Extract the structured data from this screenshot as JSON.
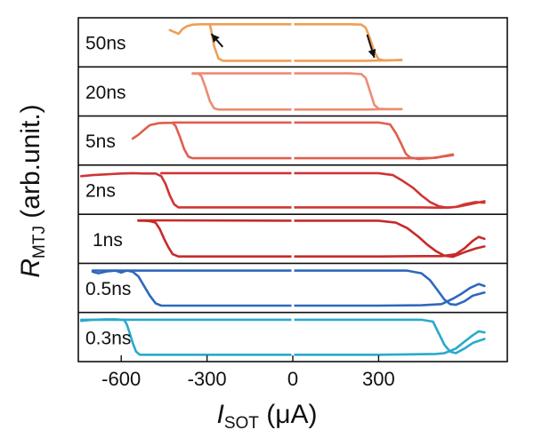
{
  "chart_data": {
    "type": "line",
    "xlabel": {
      "main": "I",
      "sub": "SOT",
      "unit": " (μA)"
    },
    "ylabel": {
      "main": "R",
      "sub": "MTJ",
      "unit": " (arb.unit.)"
    },
    "xlim": [
      -750,
      750
    ],
    "x_ticks": [
      -600,
      -300,
      0,
      300
    ],
    "x_tick_labels": [
      "-600",
      "-300",
      "0",
      "300"
    ],
    "panels": [
      {
        "label": "50ns",
        "color": "#ee9f55",
        "up_branch": [
          [
            -430,
            0.82
          ],
          [
            -400,
            0.72
          ],
          [
            -385,
            0.85
          ],
          [
            -370,
            0.92
          ],
          [
            -350,
            0.96
          ],
          [
            -320,
            0.97
          ],
          [
            -300,
            0.97
          ],
          [
            -290,
            0.97
          ],
          [
            -285,
            0.8
          ],
          [
            -275,
            0.4
          ],
          [
            -260,
            0.08
          ],
          [
            -245,
            0.02
          ],
          [
            0,
            0.02
          ],
          [
            250,
            0.02
          ],
          [
            330,
            0.03
          ],
          [
            380,
            0.04
          ]
        ],
        "down_branch": [
          [
            -300,
            0.97
          ],
          [
            0,
            0.97
          ],
          [
            200,
            0.97
          ],
          [
            240,
            0.96
          ],
          [
            255,
            0.88
          ],
          [
            270,
            0.6
          ],
          [
            285,
            0.25
          ],
          [
            300,
            0.06
          ],
          [
            320,
            0.03
          ],
          [
            380,
            0.04
          ]
        ],
        "arrows": [
          [
            -245,
            0.38,
            -285,
            0.72
          ],
          [
            260,
            0.7,
            285,
            0.1
          ]
        ]
      },
      {
        "label": "20ns",
        "color": "#ec8c73",
        "up_branch": [
          [
            -350,
            0.96
          ],
          [
            -330,
            0.96
          ],
          [
            -320,
            0.9
          ],
          [
            -305,
            0.6
          ],
          [
            -290,
            0.25
          ],
          [
            -275,
            0.06
          ],
          [
            -260,
            0.03
          ],
          [
            0,
            0.03
          ],
          [
            250,
            0.03
          ],
          [
            330,
            0.04
          ],
          [
            380,
            0.04
          ]
        ],
        "down_branch": [
          [
            -350,
            0.97
          ],
          [
            0,
            0.97
          ],
          [
            200,
            0.97
          ],
          [
            240,
            0.95
          ],
          [
            255,
            0.85
          ],
          [
            270,
            0.5
          ],
          [
            285,
            0.15
          ],
          [
            300,
            0.05
          ],
          [
            330,
            0.04
          ],
          [
            380,
            0.04
          ]
        ]
      },
      {
        "label": "5ns",
        "color": "#df5e50",
        "up_branch": [
          [
            -560,
            0.55
          ],
          [
            -540,
            0.65
          ],
          [
            -520,
            0.78
          ],
          [
            -500,
            0.9
          ],
          [
            -470,
            0.95
          ],
          [
            -450,
            0.96
          ],
          [
            -420,
            0.96
          ],
          [
            -410,
            0.88
          ],
          [
            -395,
            0.6
          ],
          [
            -380,
            0.28
          ],
          [
            -365,
            0.08
          ],
          [
            -350,
            0.04
          ],
          [
            0,
            0.04
          ],
          [
            300,
            0.04
          ],
          [
            430,
            0.04
          ],
          [
            500,
            0.05
          ],
          [
            530,
            0.1
          ],
          [
            560,
            0.14
          ]
        ],
        "down_branch": [
          [
            -420,
            0.97
          ],
          [
            0,
            0.97
          ],
          [
            300,
            0.97
          ],
          [
            340,
            0.92
          ],
          [
            360,
            0.7
          ],
          [
            380,
            0.4
          ],
          [
            395,
            0.16
          ],
          [
            410,
            0.06
          ],
          [
            440,
            0.02
          ],
          [
            490,
            0.05
          ],
          [
            560,
            0.12
          ]
        ]
      },
      {
        "label": "2ns",
        "color": "#cf3535",
        "up_branch": [
          [
            -740,
            0.85
          ],
          [
            -700,
            0.88
          ],
          [
            -650,
            0.9
          ],
          [
            -600,
            0.92
          ],
          [
            -560,
            0.93
          ],
          [
            -520,
            0.92
          ],
          [
            -480,
            0.92
          ],
          [
            -460,
            0.85
          ],
          [
            -445,
            0.65
          ],
          [
            -430,
            0.35
          ],
          [
            -415,
            0.12
          ],
          [
            -400,
            0.04
          ],
          [
            0,
            0.04
          ],
          [
            300,
            0.04
          ],
          [
            450,
            0.04
          ],
          [
            520,
            0.03
          ],
          [
            570,
            0.05
          ],
          [
            600,
            0.12
          ],
          [
            640,
            0.18
          ],
          [
            670,
            0.16
          ]
        ],
        "down_branch": [
          [
            -460,
            0.93
          ],
          [
            0,
            0.93
          ],
          [
            300,
            0.93
          ],
          [
            350,
            0.88
          ],
          [
            380,
            0.75
          ],
          [
            420,
            0.55
          ],
          [
            450,
            0.35
          ],
          [
            480,
            0.18
          ],
          [
            510,
            0.07
          ],
          [
            540,
            0.03
          ],
          [
            580,
            0.06
          ],
          [
            620,
            0.12
          ],
          [
            670,
            0.2
          ]
        ]
      },
      {
        "label": "1ns",
        "color": "#c82a2a",
        "up_branch": [
          [
            -540,
            0.97
          ],
          [
            -520,
            0.97
          ],
          [
            -500,
            0.96
          ],
          [
            -480,
            0.92
          ],
          [
            -465,
            0.75
          ],
          [
            -450,
            0.5
          ],
          [
            -435,
            0.28
          ],
          [
            -420,
            0.1
          ],
          [
            -400,
            0.04
          ],
          [
            0,
            0.04
          ],
          [
            300,
            0.04
          ],
          [
            450,
            0.05
          ],
          [
            520,
            0.05
          ],
          [
            570,
            0.1
          ],
          [
            600,
            0.25
          ],
          [
            630,
            0.45
          ],
          [
            650,
            0.55
          ],
          [
            670,
            0.5
          ]
        ],
        "down_branch": [
          [
            -540,
            0.98
          ],
          [
            0,
            0.97
          ],
          [
            300,
            0.97
          ],
          [
            360,
            0.92
          ],
          [
            400,
            0.78
          ],
          [
            440,
            0.55
          ],
          [
            470,
            0.35
          ],
          [
            500,
            0.18
          ],
          [
            530,
            0.06
          ],
          [
            560,
            0.03
          ],
          [
            600,
            0.15
          ],
          [
            640,
            0.25
          ],
          [
            670,
            0.3
          ]
        ]
      },
      {
        "label": "0.5ns",
        "color": "#2e68bd",
        "up_branch": [
          [
            -700,
            0.92
          ],
          [
            -680,
            0.88
          ],
          [
            -650,
            0.93
          ],
          [
            -620,
            0.95
          ],
          [
            -600,
            0.9
          ],
          [
            -590,
            0.93
          ],
          [
            -580,
            0.95
          ],
          [
            -560,
            0.92
          ],
          [
            -540,
            0.8
          ],
          [
            -520,
            0.55
          ],
          [
            -500,
            0.3
          ],
          [
            -480,
            0.1
          ],
          [
            -460,
            0.04
          ],
          [
            0,
            0.04
          ],
          [
            300,
            0.04
          ],
          [
            450,
            0.05
          ],
          [
            520,
            0.08
          ],
          [
            560,
            0.22
          ],
          [
            590,
            0.35
          ],
          [
            620,
            0.5
          ],
          [
            650,
            0.6
          ],
          [
            670,
            0.55
          ]
        ],
        "down_branch": [
          [
            -700,
            0.95
          ],
          [
            0,
            0.95
          ],
          [
            300,
            0.95
          ],
          [
            400,
            0.95
          ],
          [
            450,
            0.88
          ],
          [
            480,
            0.7
          ],
          [
            510,
            0.4
          ],
          [
            530,
            0.2
          ],
          [
            550,
            0.08
          ],
          [
            570,
            0.06
          ],
          [
            600,
            0.15
          ],
          [
            630,
            0.3
          ],
          [
            670,
            0.38
          ]
        ]
      },
      {
        "label": "0.3ns",
        "color": "#2aa9cc",
        "up_branch": [
          [
            -740,
            0.92
          ],
          [
            -700,
            0.95
          ],
          [
            -650,
            0.96
          ],
          [
            -620,
            0.96
          ],
          [
            -600,
            0.95
          ],
          [
            -590,
            0.95
          ],
          [
            -580,
            0.82
          ],
          [
            -570,
            0.6
          ],
          [
            -560,
            0.35
          ],
          [
            -548,
            0.12
          ],
          [
            -535,
            0.04
          ],
          [
            0,
            0.04
          ],
          [
            300,
            0.04
          ],
          [
            500,
            0.06
          ],
          [
            530,
            0.08
          ],
          [
            570,
            0.2
          ],
          [
            600,
            0.38
          ],
          [
            630,
            0.55
          ],
          [
            650,
            0.65
          ],
          [
            670,
            0.62
          ]
        ],
        "down_branch": [
          [
            -740,
            0.95
          ],
          [
            0,
            0.95
          ],
          [
            300,
            0.95
          ],
          [
            450,
            0.95
          ],
          [
            490,
            0.9
          ],
          [
            510,
            0.6
          ],
          [
            530,
            0.3
          ],
          [
            550,
            0.12
          ],
          [
            570,
            0.08
          ],
          [
            600,
            0.2
          ],
          [
            630,
            0.35
          ],
          [
            670,
            0.45
          ]
        ]
      }
    ]
  }
}
